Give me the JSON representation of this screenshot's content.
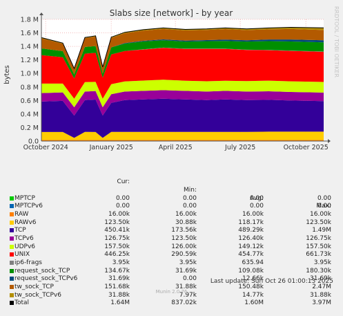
{
  "window": {
    "side_label": "RRDTOOL / TOBI OETIKER",
    "last_update": "Last update: Sun Oct 26 01:00:13 2025",
    "footer": "Munin 2.0.76"
  },
  "legend_headers": {
    "cur": "Cur:",
    "min": "Min:",
    "avg": "Avg:",
    "max": "Max:"
  },
  "legend": [
    {
      "name": "MPTCP",
      "color": "#00cc00",
      "cur": "0.00",
      "min": "0.00",
      "avg": "0.00",
      "max": "0.00"
    },
    {
      "name": "MPTCPv6",
      "color": "#0066b3",
      "cur": "0.00",
      "min": "0.00",
      "avg": "0.00",
      "max": "0.00"
    },
    {
      "name": "RAW",
      "color": "#ff8000",
      "cur": "16.00k",
      "min": "16.00k",
      "avg": "16.00k",
      "max": "16.00k"
    },
    {
      "name": "RAWv6",
      "color": "#ffcc00",
      "cur": "123.50k",
      "min": "30.88k",
      "avg": "118.17k",
      "max": "123.50k"
    },
    {
      "name": "TCP",
      "color": "#330099",
      "cur": "450.41k",
      "min": "173.56k",
      "avg": "489.29k",
      "max": "1.49M"
    },
    {
      "name": "TCPv6",
      "color": "#990099",
      "cur": "126.75k",
      "min": "123.50k",
      "avg": "126.40k",
      "max": "126.75k"
    },
    {
      "name": "UDPv6",
      "color": "#ccff00",
      "cur": "157.50k",
      "min": "126.00k",
      "avg": "149.12k",
      "max": "157.50k"
    },
    {
      "name": "UNIX",
      "color": "#ff0000",
      "cur": "446.25k",
      "min": "290.59k",
      "avg": "454.77k",
      "max": "661.73k"
    },
    {
      "name": "ip6-frags",
      "color": "#808080",
      "cur": "3.95k",
      "min": "3.95k",
      "avg": "635.94",
      "max": "3.95k"
    },
    {
      "name": "request_sock_TCP",
      "color": "#008f00",
      "cur": "134.67k",
      "min": "31.69k",
      "avg": "109.08k",
      "max": "180.30k"
    },
    {
      "name": "request_sock_TCPv6",
      "color": "#00487d",
      "cur": "31.69k",
      "min": "0.00",
      "avg": "12.66k",
      "max": "31.69k"
    },
    {
      "name": "tw_sock_TCP",
      "color": "#b35a00",
      "cur": "151.68k",
      "min": "31.88k",
      "avg": "150.48k",
      "max": "2.47M"
    },
    {
      "name": "tw_sock_TCPv6",
      "color": "#b38f00",
      "cur": "31.88k",
      "min": "7.97k",
      "avg": "14.77k",
      "max": "31.88k"
    },
    {
      "name": "Total",
      "color": "#000000",
      "cur": "1.64M",
      "min": "837.02k",
      "avg": "1.60M",
      "max": "3.97M"
    }
  ],
  "chart_data": {
    "type": "area",
    "title": "Slabs size [network] - by year",
    "ylabel": "bytes",
    "ylim": [
      0,
      1800000
    ],
    "yticks": [
      {
        "v": 0,
        "label": "0.0"
      },
      {
        "v": 200000,
        "label": "0.2 M"
      },
      {
        "v": 400000,
        "label": "0.4 M"
      },
      {
        "v": 600000,
        "label": "0.6 M"
      },
      {
        "v": 800000,
        "label": "0.8 M"
      },
      {
        "v": 1000000,
        "label": "1.0 M"
      },
      {
        "v": 1200000,
        "label": "1.2 M"
      },
      {
        "v": 1400000,
        "label": "1.4 M"
      },
      {
        "v": 1600000,
        "label": "1.6 M"
      },
      {
        "v": 1800000,
        "label": "1.8 M"
      }
    ],
    "xlim": [
      "2024-09-25",
      "2025-10-26"
    ],
    "xticks": [
      {
        "date": "2024-10-01",
        "label": "October 2024"
      },
      {
        "date": "2025-01-01",
        "label": "January 2025"
      },
      {
        "date": "2025-04-01",
        "label": "April 2025"
      },
      {
        "date": "2025-07-01",
        "label": "July 2025"
      },
      {
        "date": "2025-10-01",
        "label": "October 2025"
      }
    ],
    "grid": true,
    "x": [
      "2024-09-25",
      "2024-10-25",
      "2024-11-10",
      "2024-11-25",
      "2024-12-10",
      "2024-12-20",
      "2025-01-01",
      "2025-01-20",
      "2025-02-15",
      "2025-03-15",
      "2025-04-15",
      "2025-05-15",
      "2025-06-10",
      "2025-07-10",
      "2025-08-10",
      "2025-09-10",
      "2025-10-26"
    ],
    "series": [
      {
        "name": "RAW",
        "color": "#ff8000",
        "values": [
          16000,
          16000,
          16000,
          16000,
          16000,
          16000,
          16000,
          16000,
          16000,
          16000,
          16000,
          16000,
          16000,
          16000,
          16000,
          16000,
          16000
        ]
      },
      {
        "name": "RAWv6",
        "color": "#ffcc00",
        "values": [
          118000,
          118000,
          30880,
          120000,
          118000,
          30880,
          120000,
          120000,
          120000,
          120000,
          120000,
          120000,
          120000,
          120000,
          123500,
          123500,
          123500
        ]
      },
      {
        "name": "TCP",
        "color": "#330099",
        "values": [
          450000,
          460000,
          330000,
          470000,
          480000,
          330000,
          430000,
          470000,
          480000,
          490000,
          480000,
          470000,
          480000,
          470000,
          470000,
          460000,
          450410
        ]
      },
      {
        "name": "TCPv6",
        "color": "#990099",
        "values": [
          126000,
          126000,
          123500,
          126400,
          126400,
          123500,
          126400,
          126400,
          126400,
          126400,
          126400,
          126400,
          126400,
          126400,
          126750,
          126750,
          126750
        ]
      },
      {
        "name": "UDPv6",
        "color": "#ccff00",
        "values": [
          140000,
          130000,
          126000,
          140000,
          135000,
          126000,
          148000,
          150000,
          152000,
          155000,
          150000,
          152000,
          150000,
          155000,
          157500,
          157500,
          157500
        ]
      },
      {
        "name": "UNIX",
        "color": "#ff0000",
        "values": [
          420000,
          390000,
          300000,
          420000,
          430000,
          310000,
          440000,
          450000,
          460000,
          470000,
          470000,
          480000,
          470000,
          460000,
          450000,
          450000,
          446250
        ]
      },
      {
        "name": "ip6-frags",
        "color": "#808080",
        "values": [
          0,
          0,
          0,
          0,
          0,
          0,
          0,
          0,
          3950,
          3950,
          3950,
          3950,
          3950,
          3950,
          3950,
          3950,
          3950
        ]
      },
      {
        "name": "request_sock_TCP",
        "color": "#008f00",
        "values": [
          100000,
          90000,
          60000,
          100000,
          100000,
          60000,
          105000,
          110000,
          115000,
          110000,
          105000,
          110000,
          115000,
          120000,
          130000,
          135000,
          134670
        ]
      },
      {
        "name": "request_sock_TCPv6",
        "color": "#00487d",
        "values": [
          0,
          0,
          0,
          0,
          0,
          0,
          0,
          8000,
          10000,
          12000,
          15000,
          15000,
          20000,
          20000,
          25000,
          30000,
          31690
        ]
      },
      {
        "name": "tw_sock_TCP",
        "color": "#b35a00",
        "values": [
          150000,
          110000,
          80000,
          130000,
          140000,
          90000,
          140000,
          145000,
          150000,
          155000,
          150000,
          150000,
          155000,
          150000,
          150000,
          155000,
          151680
        ]
      },
      {
        "name": "tw_sock_TCPv6",
        "color": "#b38f00",
        "values": [
          10000,
          9000,
          7970,
          10000,
          11000,
          8000,
          12000,
          13000,
          14000,
          15000,
          15000,
          16000,
          17000,
          18000,
          20000,
          25000,
          31880
        ]
      }
    ]
  }
}
